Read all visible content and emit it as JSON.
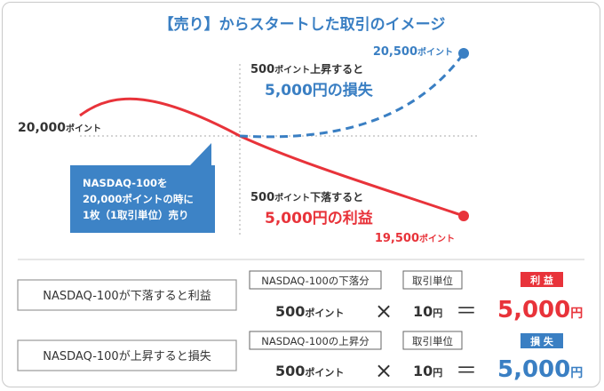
{
  "title": "【売り】からスタートした取引のイメージ",
  "start_label": {
    "value": "20,000",
    "unit": "ポイント"
  },
  "up_end_label": {
    "value": "20,500",
    "unit": "ポイント"
  },
  "down_end_label": {
    "value": "19,500",
    "unit": "ポイント"
  },
  "rise_annotation": {
    "line1_value": "500",
    "line1_unit": "ポイント",
    "line1_text": "上昇すると",
    "line2": "5,000円の損失"
  },
  "fall_annotation": {
    "line1_value": "500",
    "line1_unit": "ポイント",
    "line1_text": "下落すると",
    "line2": "5,000円の利益"
  },
  "callout": {
    "line1": "NASDAQ-100を",
    "line2": "20,000ポイントの時に",
    "line3": "1枚（1取引単位）売り"
  },
  "rows": [
    {
      "label": "NASDAQ-100が下落すると利益",
      "factor1_header": "NASDAQ-100の下落分",
      "factor2_header": "取引単位",
      "factor1_value": "500",
      "factor1_unit": "ポイント",
      "times": "×",
      "factor2_value": "10",
      "factor2_unit": "円",
      "equals": "＝",
      "result_badge": "利 益",
      "result_value": "5,000",
      "result_unit": "円"
    },
    {
      "label": "NASDAQ-100が上昇すると損失",
      "factor1_header": "NASDAQ-100の上昇分",
      "factor2_header": "取引単位",
      "factor1_value": "500",
      "factor1_unit": "ポイント",
      "times": "×",
      "factor2_value": "10",
      "factor2_unit": "円",
      "equals": "＝",
      "result_badge": "損 失",
      "result_value": "5,000",
      "result_unit": "円"
    }
  ],
  "colors": {
    "red": "#e8333a",
    "blue": "#3a7fc3",
    "callout_fill": "#3d83c6",
    "text_dark": "#333333",
    "guide": "#aaaaaa"
  }
}
